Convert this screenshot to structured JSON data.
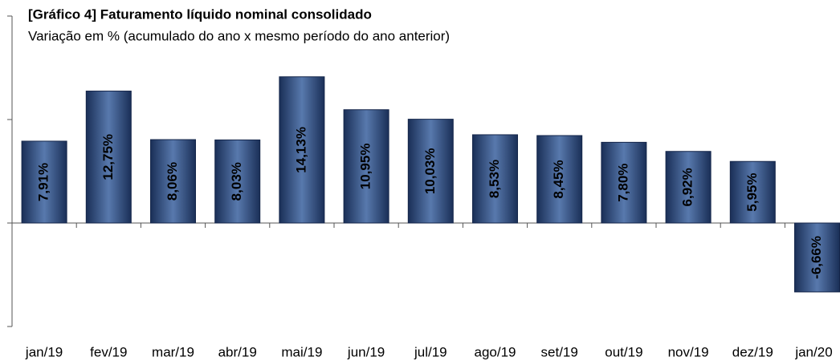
{
  "chart_data": {
    "type": "bar",
    "title": "[Gráfico 4] Faturamento líquido nominal consolidado",
    "subtitle": "Variação em % (acumulado do ano x mesmo período do ano anterior)",
    "categories": [
      "jan/19",
      "fev/19",
      "mar/19",
      "abr/19",
      "mai/19",
      "jun/19",
      "jul/19",
      "ago/19",
      "set/19",
      "out/19",
      "nov/19",
      "dez/19",
      "jan/20"
    ],
    "values": [
      7.91,
      12.75,
      8.06,
      8.03,
      14.13,
      10.95,
      10.03,
      8.53,
      8.45,
      7.8,
      6.92,
      5.95,
      -6.66
    ],
    "value_labels": [
      "7,91%",
      "12,75%",
      "8,06%",
      "8,03%",
      "14,13%",
      "10,95%",
      "10,03%",
      "8,53%",
      "8,45%",
      "7,80%",
      "6,92%",
      "5,95%",
      "-6,66%"
    ],
    "color": "#1f3b6b",
    "negative_label_color": "#ff0000",
    "ylim": [
      -10,
      20
    ],
    "yticks": [
      -10,
      0,
      10,
      20
    ],
    "grid": false
  }
}
